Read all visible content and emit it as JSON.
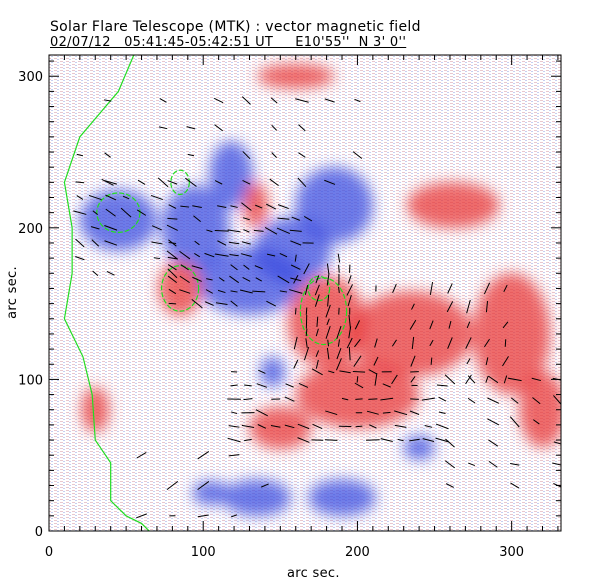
{
  "chart_data": {
    "type": "heatmap",
    "title": "Solar Flare Telescope (MTK) : vector magnetic field",
    "subtitle": "02/07/12   05:41:45-05:42:51 UT     E10'55''  N 3' 0''",
    "xlabel": "arc sec.",
    "ylabel": "arc sec.",
    "xlim": [
      0,
      332
    ],
    "ylim": [
      0,
      314
    ],
    "xticks": [
      "0",
      "100",
      "200",
      "300"
    ],
    "yticks": [
      "0",
      "100",
      "200",
      "300"
    ],
    "colors": {
      "positive": "#e8383a",
      "negative": "#3f4fe0",
      "contour": "#22dd22",
      "vector": "#000000"
    },
    "negative_regions": [
      [
        45,
        205,
        25,
        20
      ],
      [
        95,
        200,
        22,
        28
      ],
      [
        118,
        235,
        14,
        22
      ],
      [
        130,
        165,
        35,
        22
      ],
      [
        158,
        185,
        25,
        22
      ],
      [
        185,
        215,
        25,
        25
      ],
      [
        145,
        105,
        8,
        10
      ],
      [
        135,
        22,
        22,
        12
      ],
      [
        190,
        22,
        22,
        12
      ],
      [
        105,
        25,
        12,
        8
      ],
      [
        240,
        55,
        10,
        8
      ]
    ],
    "positive_regions": [
      [
        85,
        160,
        14,
        18
      ],
      [
        180,
        138,
        25,
        30
      ],
      [
        200,
        90,
        40,
        22
      ],
      [
        150,
        68,
        20,
        14
      ],
      [
        235,
        130,
        40,
        28
      ],
      [
        300,
        130,
        25,
        40
      ],
      [
        320,
        80,
        15,
        25
      ],
      [
        262,
        215,
        30,
        15
      ],
      [
        134,
        215,
        8,
        15
      ],
      [
        30,
        80,
        9,
        15
      ],
      [
        160,
        300,
        25,
        8
      ]
    ],
    "contours": [
      [
        45,
        210,
        14,
        13
      ],
      [
        85,
        160,
        12,
        15
      ],
      [
        178,
        145,
        15,
        22
      ],
      [
        175,
        160,
        7,
        8
      ],
      [
        85,
        230,
        6,
        8
      ]
    ],
    "limb": [
      [
        55,
        314
      ],
      [
        45,
        290
      ],
      [
        20,
        260
      ],
      [
        10,
        230
      ],
      [
        15,
        200
      ],
      [
        15,
        170
      ],
      [
        10,
        140
      ],
      [
        22,
        115
      ],
      [
        28,
        90
      ],
      [
        30,
        60
      ],
      [
        40,
        45
      ],
      [
        40,
        20
      ],
      [
        50,
        10
      ],
      [
        60,
        5
      ],
      [
        65,
        0
      ]
    ],
    "vector_regions": [
      [
        20,
        300,
        200,
        230,
        18,
        -30
      ],
      [
        20,
        230,
        80,
        170,
        10,
        -25
      ],
      [
        80,
        220,
        170,
        150,
        8,
        -20
      ],
      [
        160,
        180,
        200,
        110,
        7,
        80
      ],
      [
        120,
        110,
        260,
        60,
        9,
        -10
      ],
      [
        200,
        170,
        300,
        100,
        12,
        70
      ],
      [
        260,
        100,
        330,
        30,
        14,
        -30
      ],
      [
        60,
        60,
        140,
        10,
        20,
        20
      ]
    ]
  }
}
